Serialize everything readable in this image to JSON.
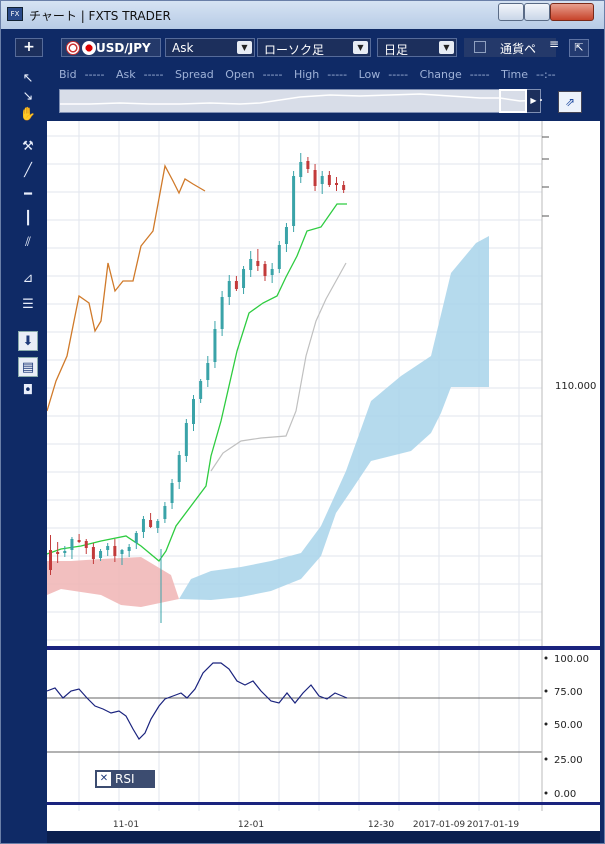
{
  "window": {
    "title": "チャート | FXTS TRADER",
    "icon": "FX"
  },
  "toolbar": {
    "add_label": "+",
    "symbol": "USD/JPY",
    "price_type": "Ask",
    "chart_type": "ローソク足",
    "period": "日足",
    "currency_button": "通貨ペ",
    "menu_icon": "≡",
    "popout_icon": "⇱"
  },
  "quote": {
    "bid_label": "Bid",
    "bid_value": "-----",
    "ask_label": "Ask",
    "ask_value": "-----",
    "spread_label": "Spread",
    "open_label": "Open",
    "open_value": "-----",
    "high_label": "High",
    "high_value": "-----",
    "low_label": "Low",
    "low_value": "-----",
    "change_label": "Change",
    "change_value": "-----",
    "time_label": "Time",
    "time_value": "--:--"
  },
  "rsi": {
    "label": "RSI",
    "close": "✕"
  },
  "chart_data": {
    "type": "candlestick",
    "symbol": "USD/JPY",
    "price_axis_label": "110.000",
    "rsi_ticks": [
      "100.00",
      "75.00",
      "50.00",
      "25.00",
      "0.00"
    ],
    "x_ticks": [
      "11-01",
      "12-01",
      "12-30",
      "2017-01-09",
      "2017-01-19"
    ],
    "colors": {
      "up": "#3aa3a8",
      "down": "#c23a3a",
      "tenkan": "#2ecc40",
      "lagging": "#d07a2a",
      "kumo_bull": "#a8d4ea",
      "kumo_bear": "#f0b4b4",
      "rsi": "#1a237e",
      "senkou_b": "#c0c0c0"
    },
    "rsi_levels": [
      70,
      30
    ],
    "candles": [
      [
        549,
        574,
        534,
        569
      ],
      [
        551,
        562,
        541,
        553
      ],
      [
        552,
        556,
        545,
        550
      ],
      [
        549,
        558,
        536,
        538
      ],
      [
        539,
        542,
        533,
        540
      ],
      [
        540,
        553,
        538,
        547
      ],
      [
        546,
        563,
        542,
        558
      ],
      [
        557,
        560,
        548,
        550
      ],
      [
        549,
        555,
        542,
        545
      ],
      [
        545,
        561,
        538,
        555
      ],
      [
        553,
        564,
        548,
        549
      ],
      [
        550,
        556,
        543,
        546
      ],
      [
        542,
        548,
        530,
        532
      ],
      [
        531,
        537,
        515,
        518
      ],
      [
        519,
        527,
        512,
        526
      ],
      [
        527,
        532,
        518,
        520
      ],
      [
        518,
        522,
        501,
        505
      ],
      [
        502,
        508,
        478,
        482
      ],
      [
        481,
        488,
        450,
        454
      ],
      [
        455,
        461,
        418,
        422
      ],
      [
        423,
        430,
        394,
        398
      ],
      [
        398,
        402,
        378,
        380
      ],
      [
        379,
        386,
        355,
        362
      ],
      [
        361,
        367,
        320,
        328
      ],
      [
        328,
        335,
        290,
        296
      ],
      [
        296,
        304,
        274,
        280
      ],
      [
        280,
        290,
        275,
        288
      ],
      [
        287,
        293,
        265,
        268
      ],
      [
        269,
        276,
        250,
        258
      ],
      [
        260,
        270,
        248,
        265
      ],
      [
        263,
        280,
        260,
        275
      ],
      [
        274,
        282,
        262,
        268
      ],
      [
        268,
        272,
        240,
        244
      ],
      [
        243,
        251,
        222,
        226
      ],
      [
        225,
        231,
        170,
        175
      ],
      [
        176,
        182,
        152,
        161
      ],
      [
        160,
        172,
        156,
        168
      ],
      [
        169,
        190,
        163,
        185
      ],
      [
        183,
        193,
        170,
        175
      ],
      [
        174,
        186,
        170,
        184
      ],
      [
        182,
        190,
        176,
        184
      ],
      [
        184,
        192,
        180,
        189
      ]
    ]
  }
}
